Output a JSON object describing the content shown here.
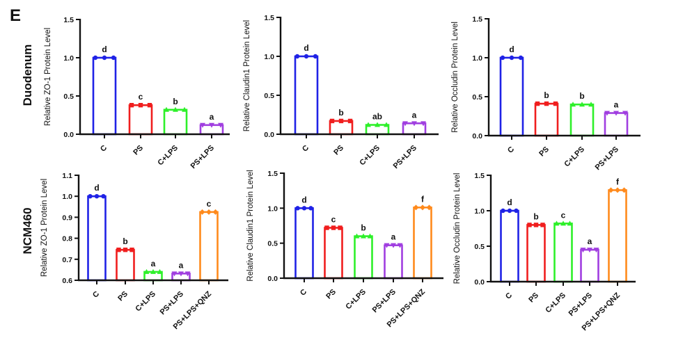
{
  "panel_label": "E",
  "row_labels": [
    "Duodenum",
    "NCM460"
  ],
  "colors": {
    "C": "#1f22e6",
    "PS": "#f01e1e",
    "C+LPS": "#2ef02a",
    "PS+LPS": "#a03ee0",
    "PS+LPS+QNZ": "#ff8a1c"
  },
  "chart_data": [
    {
      "type": "bar",
      "row": "Duodenum",
      "ylabel": "Relative ZO-1 Protein Level",
      "ylim": [
        0,
        1.5
      ],
      "yticks": [
        "0.0",
        "0.5",
        "1.0",
        "1.5"
      ],
      "categories": [
        "C",
        "PS",
        "C+LPS",
        "PS+LPS"
      ],
      "values": [
        1.0,
        0.38,
        0.32,
        0.12
      ],
      "significance": [
        "d",
        "c",
        "b",
        "a"
      ]
    },
    {
      "type": "bar",
      "row": "Duodenum",
      "ylabel": "Relative Claudin1  Protein Level",
      "ylim": [
        0,
        1.5
      ],
      "yticks": [
        "0.0",
        "0.5",
        "1.0",
        "1.5"
      ],
      "categories": [
        "C",
        "PS",
        "C+LPS",
        "PS+LPS"
      ],
      "values": [
        1.0,
        0.17,
        0.12,
        0.14
      ],
      "significance": [
        "d",
        "b",
        "ab",
        "a"
      ]
    },
    {
      "type": "bar",
      "row": "Duodenum",
      "ylabel": "Relative Occludin Protein Level",
      "ylim": [
        0,
        1.5
      ],
      "yticks": [
        "0.0",
        "0.5",
        "1.0",
        "1.5"
      ],
      "categories": [
        "C",
        "PS",
        "C+LPS",
        "PS+LPS"
      ],
      "values": [
        1.0,
        0.41,
        0.4,
        0.29
      ],
      "significance": [
        "d",
        "b",
        "b",
        "a"
      ]
    },
    {
      "type": "bar",
      "row": "NCM460",
      "ylabel": "Relative ZO-1 Protein Level",
      "ylim": [
        0.6,
        1.1
      ],
      "yticks": [
        "0.6",
        "0.7",
        "0.8",
        "0.9",
        "1.0",
        "1.1"
      ],
      "categories": [
        "C",
        "PS",
        "C+LPS",
        "PS+LPS",
        "PS+LPS+QNZ"
      ],
      "values": [
        1.0,
        0.745,
        0.64,
        0.632,
        0.925
      ],
      "significance": [
        "d",
        "b",
        "a",
        "a",
        "c"
      ]
    },
    {
      "type": "bar",
      "row": "NCM460",
      "ylabel": "Relative Claudin1 Protein Level",
      "ylim": [
        0,
        1.5
      ],
      "yticks": [
        "0.0",
        "0.5",
        "1.0",
        "1.5"
      ],
      "categories": [
        "C",
        "PS",
        "C+LPS",
        "PS+LPS",
        "PS+LPS+QNZ"
      ],
      "values": [
        1.0,
        0.72,
        0.6,
        0.47,
        1.01
      ],
      "significance": [
        "d",
        "c",
        "b",
        "a",
        "f"
      ]
    },
    {
      "type": "bar",
      "row": "NCM460",
      "ylabel": "Relative Occludin Protein Level",
      "ylim": [
        0,
        1.5
      ],
      "yticks": [
        "0.0",
        "0.5",
        "1.0",
        "1.5"
      ],
      "categories": [
        "C",
        "PS",
        "C+LPS",
        "PS+LPS",
        "PS+LPS+QNZ"
      ],
      "values": [
        1.0,
        0.8,
        0.82,
        0.45,
        1.29
      ],
      "significance": [
        "d",
        "b",
        "c",
        "a",
        "f"
      ]
    }
  ]
}
